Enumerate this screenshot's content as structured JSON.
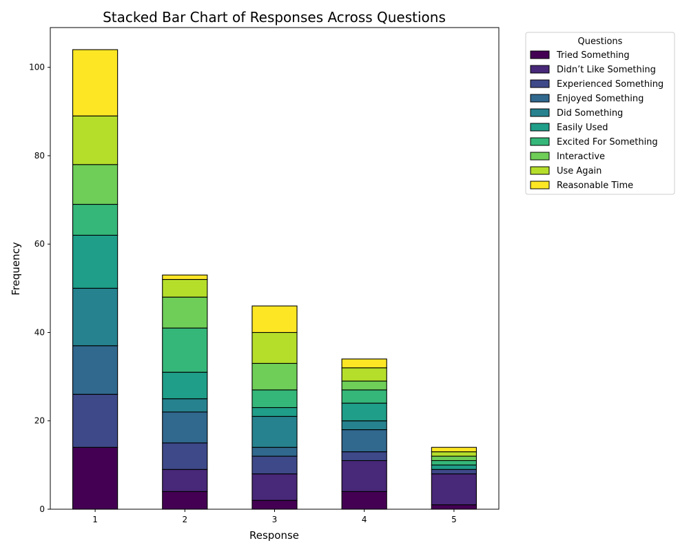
{
  "chart_data": {
    "type": "bar",
    "stacked": true,
    "title": "Stacked Bar Chart of Responses Across Questions",
    "xlabel": "Response",
    "ylabel": "Frequency",
    "categories": [
      "1",
      "2",
      "3",
      "4",
      "5"
    ],
    "ylim": [
      0,
      109
    ],
    "yticks": [
      0,
      20,
      40,
      60,
      80,
      100
    ],
    "legend": {
      "title": "Questions",
      "placement": "outside-top-right"
    },
    "grid": false,
    "series": [
      {
        "name": "Tried Something",
        "color": "#440154",
        "values": [
          14,
          4,
          2,
          4,
          1
        ]
      },
      {
        "name": "Didn’t Like Something",
        "color": "#482878",
        "values": [
          0,
          5,
          6,
          7,
          7
        ]
      },
      {
        "name": "Experienced Something",
        "color": "#3e4989",
        "values": [
          12,
          6,
          4,
          2,
          1
        ]
      },
      {
        "name": "Enjoyed Something",
        "color": "#31688e",
        "values": [
          11,
          7,
          2,
          5,
          0
        ]
      },
      {
        "name": "Did Something",
        "color": "#26828e",
        "values": [
          13,
          3,
          7,
          2,
          0
        ]
      },
      {
        "name": "Easily Used",
        "color": "#1f9e89",
        "values": [
          12,
          6,
          2,
          4,
          1
        ]
      },
      {
        "name": "Excited For Something",
        "color": "#35b779",
        "values": [
          7,
          10,
          4,
          3,
          1
        ]
      },
      {
        "name": "Interactive",
        "color": "#6ece58",
        "values": [
          9,
          7,
          6,
          2,
          1
        ]
      },
      {
        "name": "Use Again",
        "color": "#b5de2b",
        "values": [
          11,
          4,
          7,
          3,
          1
        ]
      },
      {
        "name": "Reasonable Time",
        "color": "#fde725",
        "values": [
          15,
          1,
          6,
          2,
          1
        ]
      }
    ]
  }
}
